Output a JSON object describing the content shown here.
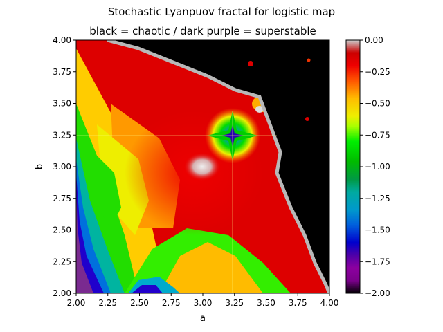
{
  "chart_data": {
    "type": "heatmap",
    "title": "Stochastic Lyanpuov fractal for logistic map",
    "subtitle": "black = chaotic / dark purple = superstable",
    "xlabel": "a",
    "ylabel": "b",
    "xlim": [
      2.0,
      4.0
    ],
    "ylim": [
      2.0,
      4.0
    ],
    "x_ticks": [
      "2.00",
      "2.25",
      "2.50",
      "2.75",
      "3.00",
      "3.25",
      "3.50",
      "3.75",
      "4.00"
    ],
    "y_ticks": [
      "2.00",
      "2.25",
      "2.50",
      "2.75",
      "3.00",
      "3.25",
      "3.50",
      "3.75",
      "4.00"
    ],
    "colorbar": {
      "range": [
        -2.0,
        0.0
      ],
      "ticks": [
        "0.00",
        "−0.25",
        "−0.50",
        "−0.75",
        "−1.00",
        "−1.25",
        "−1.50",
        "−1.75",
        "−2.00"
      ],
      "colormap": "nipy_spectral"
    },
    "grid": false,
    "features": [
      {
        "name": "chaotic region",
        "color": "#000000",
        "location": "top-right triangle above diagonal b ≈ 4.0 to a ≈ 4.0"
      },
      {
        "name": "superstable point",
        "a": 3.24,
        "b": 3.24
      },
      {
        "name": "bright spot",
        "a": 3.0,
        "b": 3.0
      }
    ]
  }
}
